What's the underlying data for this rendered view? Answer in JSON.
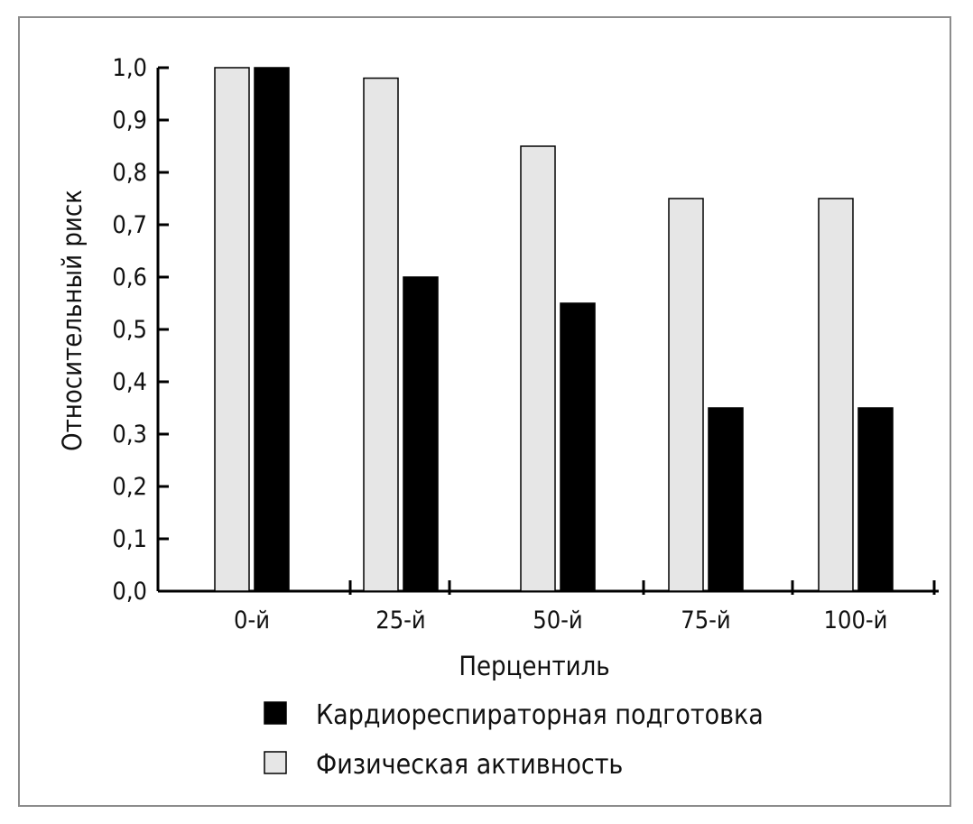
{
  "chart_data": {
    "type": "bar",
    "title": "",
    "xlabel": "Перцентиль",
    "ylabel": "Относительный риск",
    "categories": [
      "0-й",
      "25-й",
      "50-й",
      "75-й",
      "100-й"
    ],
    "ylim": [
      0,
      1.0
    ],
    "yticks": [
      "0,0",
      "0,1",
      "0,2",
      "0,3",
      "0,4",
      "0,5",
      "0,6",
      "0,7",
      "0,8",
      "0,9",
      "1,0"
    ],
    "series": [
      {
        "name": "Физическая активность",
        "color": "#e6e6e6",
        "values": [
          1.0,
          0.98,
          0.85,
          0.75,
          0.75
        ]
      },
      {
        "name": "Кардиореспираторная подготовка",
        "color": "#000000",
        "values": [
          1.0,
          0.6,
          0.55,
          0.35,
          0.35
        ]
      }
    ],
    "legend": {
      "placement": "bottom",
      "order": [
        "Кардиореспираторная подготовка",
        "Физическая активность"
      ]
    },
    "grid": false
  }
}
